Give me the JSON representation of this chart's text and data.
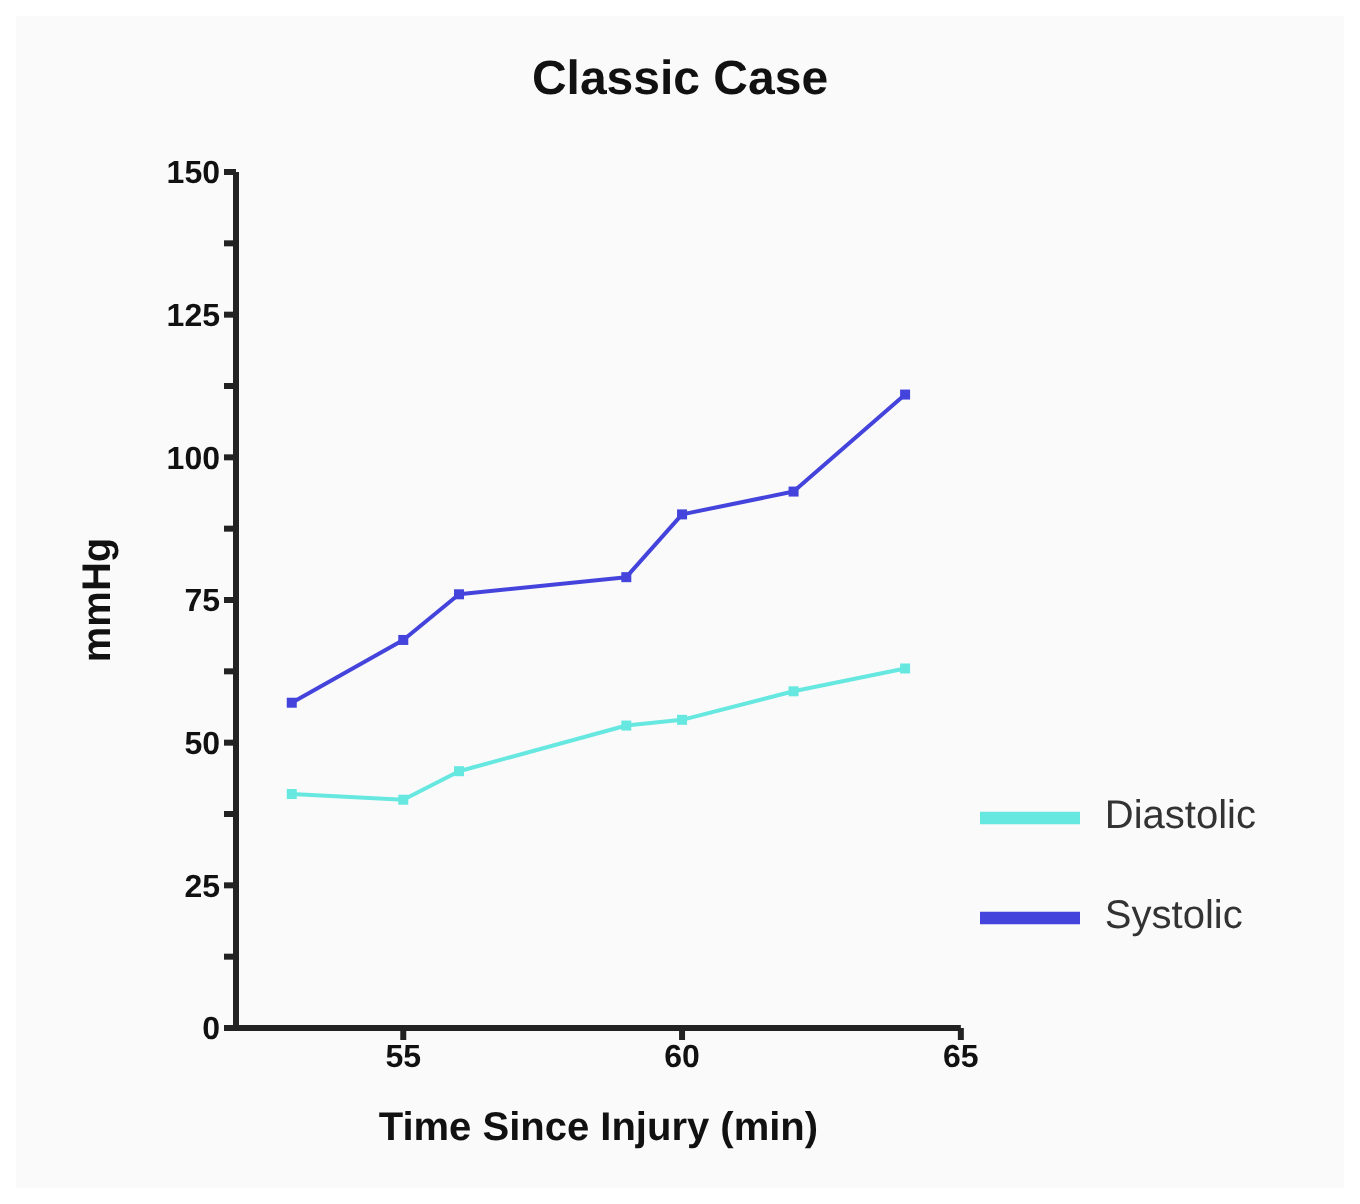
{
  "chart_data": {
    "type": "line",
    "title": "Classic Case",
    "xlabel": "Time Since Injury (min)",
    "ylabel": "mmHg",
    "x": [
      53,
      55,
      56,
      59,
      60,
      62,
      64
    ],
    "series": [
      {
        "name": "Systolic",
        "color": "#4444dd",
        "values": [
          57,
          68,
          76,
          79,
          90,
          94,
          111
        ]
      },
      {
        "name": "Diastolic",
        "color": "#66e8e0",
        "values": [
          41,
          40,
          45,
          53,
          54,
          59,
          63
        ]
      }
    ],
    "xlim": [
      52,
      65
    ],
    "xticks": [
      55,
      60,
      65
    ],
    "ylim": [
      0,
      150
    ],
    "yticks": [
      0,
      {
        "value": 12.5,
        "label": null
      },
      25,
      {
        "value": 37.5,
        "label": null
      },
      50,
      {
        "value": 62.5,
        "label": null
      },
      75,
      {
        "value": 87.5,
        "label": null
      },
      100,
      {
        "value": 112.5,
        "label": null
      },
      125,
      {
        "value": 137.5,
        "label": null
      },
      150
    ],
    "grid": false,
    "legend": "bottom right",
    "marker": "square",
    "line_style": "solid"
  }
}
